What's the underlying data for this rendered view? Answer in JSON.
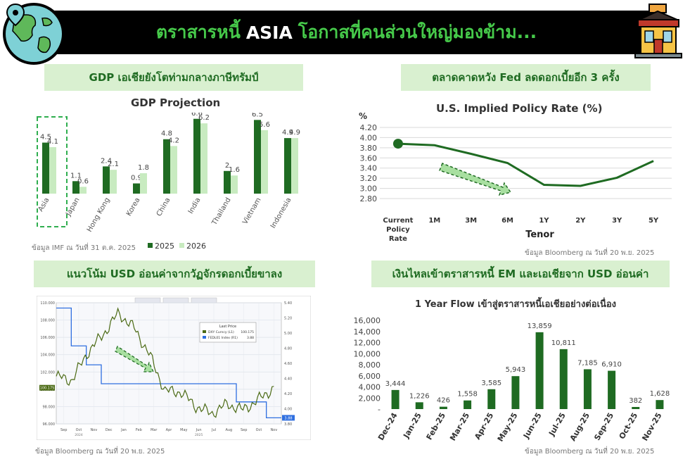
{
  "banner": {
    "title_part1": "ตราสารหนี้",
    "title_highlight": "ASIA",
    "title_part2": "โอกาสที่คนส่วนใหญ่มองข้าม..."
  },
  "icons": [
    "globe-map-icon",
    "building-icon",
    "trend-arrow-icon"
  ],
  "colors": {
    "dark_green": "#1f6b22",
    "light_green": "#c8ebc0",
    "banner_bg": "#000000",
    "banner_text": "#46c94a",
    "section_bg": "#d9f0d0"
  },
  "panels": {
    "gdp": {
      "section_title": "GDP เอเชียยังโตท่ามกลางภาษีทรัมป์",
      "source": "ข้อมูล IMF ณ วันที่ 31 ต.ค. 2025",
      "legend": [
        "2025",
        "2026"
      ]
    },
    "policy": {
      "section_title": "ตลาดคาดหวัง Fed ลดดอกเบี้ยอีก 3 ครั้ง",
      "source": "ข้อมูล Bloomberg ณ วันที่ 20 พ.ย. 2025"
    },
    "usd": {
      "section_title": "แนวโน้ม USD อ่อนค่าจากวัฏจักรดอกเบี้ยขาลง",
      "source": "ข้อมูล Bloomberg ณ วันที่ 20 พ.ย. 2025",
      "legend_title": "Last Price",
      "legend_items": [
        {
          "name": "DXY Curncy (L1)",
          "value": "100.175"
        },
        {
          "name": "FEDL01 Index (R1)",
          "value": "3.88"
        }
      ],
      "left_ticks": [
        "110.000",
        "108.000",
        "106.000",
        "104.000",
        "102.000",
        "100.000",
        "98.000",
        "96.000"
      ],
      "right_ticks": [
        "5.40",
        "5.20",
        "5.00",
        "4.80",
        "4.60",
        "4.40",
        "4.20",
        "4.00",
        "3.80"
      ],
      "months": [
        "Sep",
        "Oct",
        "Nov",
        "Dec",
        "Jan",
        "Feb",
        "Mar",
        "Apr",
        "May",
        "Jun",
        "Jul",
        "Aug",
        "Sep",
        "Oct",
        "Nov"
      ],
      "years": [
        "2024",
        "2025"
      ],
      "dxy_last": "100.175",
      "fed_last": "3.88"
    },
    "flow": {
      "section_title": "เงินไหลเข้าตราสารหนี้ EM และเอเชียจาก USD อ่อนค่า",
      "source": "ข้อมูล Bloomberg ณ วันที่ 20 พ.ย. 2025"
    }
  },
  "chart_data": [
    {
      "type": "bar",
      "title": "GDP Projection",
      "categories": [
        "Asia",
        "Japan",
        "Hong Kong",
        "Korea",
        "China",
        "India",
        "Thailand",
        "Vietnam",
        "Indonesia"
      ],
      "series": [
        {
          "name": "2025",
          "values": [
            4.5,
            1.1,
            2.4,
            0.9,
            4.8,
            6.6,
            2.0,
            6.5,
            4.9
          ]
        },
        {
          "name": "2026",
          "values": [
            4.1,
            0.6,
            2.1,
            1.8,
            4.2,
            6.2,
            1.6,
            5.6,
            4.9
          ]
        }
      ],
      "ylim": [
        0,
        7
      ],
      "legend": "bottom-left",
      "highlight": "Asia"
    },
    {
      "type": "line",
      "title": "U.S. Implied Policy Rate (%)",
      "xlabel": "Tenor",
      "ylabel": "%",
      "x": [
        "Current Policy Rate",
        "1M",
        "3M",
        "6M",
        "1Y",
        "2Y",
        "3Y",
        "5Y"
      ],
      "values": [
        3.88,
        3.85,
        3.68,
        3.5,
        3.07,
        3.05,
        3.21,
        3.54
      ],
      "yticks": [
        "4.20",
        "4.00",
        "3.80",
        "3.60",
        "3.40",
        "3.20",
        "3.00",
        "2.80"
      ],
      "ylim": [
        2.8,
        4.2
      ],
      "grid": true
    },
    {
      "type": "line",
      "title": "",
      "series": [
        {
          "name": "DXY Curncy (L1)",
          "axis": "left",
          "x": [
            "Sep 24",
            "Oct 24",
            "Nov 24",
            "Dec 24",
            "Jan 25",
            "Feb 25",
            "Mar 25",
            "Apr 25",
            "May 25",
            "Jun 25",
            "Jul 25",
            "Aug 25",
            "Sep 25",
            "Oct 25",
            "Nov 25"
          ],
          "values": [
            101.5,
            101.0,
            104.2,
            106.3,
            108.8,
            107.1,
            104.0,
            99.8,
            99.7,
            98.0,
            97.2,
            98.3,
            97.6,
            98.8,
            100.175
          ]
        },
        {
          "name": "FEDL01 Index (R1)",
          "axis": "right",
          "x": [
            "Sep 24",
            "Oct 24",
            "Nov 24",
            "Dec 24",
            "Jan 25",
            "Feb 25",
            "Mar 25",
            "Apr 25",
            "May 25",
            "Jun 25",
            "Jul 25",
            "Aug 25",
            "Sep 25",
            "Oct 25",
            "Nov 25"
          ],
          "values": [
            5.33,
            4.83,
            4.58,
            4.33,
            4.33,
            4.33,
            4.33,
            4.33,
            4.33,
            4.33,
            4.33,
            4.33,
            4.09,
            4.09,
            3.88
          ]
        }
      ],
      "ylim_left": [
        96,
        110
      ],
      "ylim_right": [
        3.8,
        5.4
      ],
      "grid": true
    },
    {
      "type": "bar",
      "title": "1 Year Flow เข้าสู่ตราสารหนี้เอเชียอย่างต่อเนื่อง",
      "categories": [
        "Dec-24",
        "Jan-25",
        "Feb-25",
        "Mar-25",
        "Apr-25",
        "May-25",
        "Jun-25",
        "Jul-25",
        "Aug-25",
        "Sep-25",
        "Oct-25",
        "Nov-25"
      ],
      "values": [
        3444,
        1226,
        426,
        1558,
        3585,
        5943,
        13859,
        10811,
        7185,
        6910,
        382,
        1628
      ],
      "labels": [
        "3,444",
        "1,226",
        "426",
        "1,558",
        "3,585",
        "5,943",
        "13,859",
        "10,811",
        "7,185",
        "6,910",
        "382",
        "1,628"
      ],
      "yticks": [
        "16,000",
        "14,000",
        "12,000",
        "10,000",
        "8,000",
        "6,000",
        "4,000",
        "2,000",
        "-"
      ],
      "ylim": [
        0,
        16000
      ]
    }
  ]
}
